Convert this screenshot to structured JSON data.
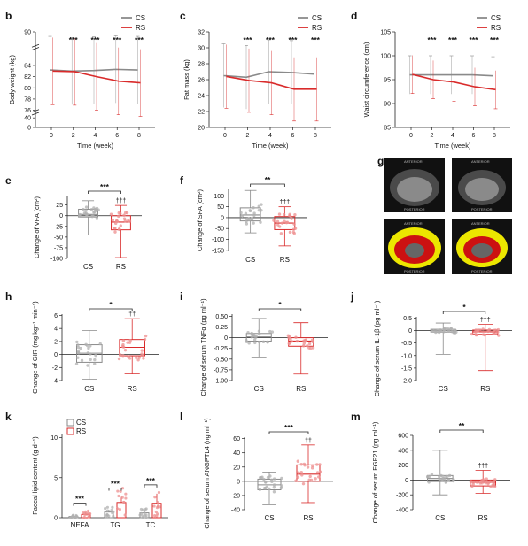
{
  "colors": {
    "cs": "#8a8a8a",
    "rs": "#d92b2b",
    "cs_point": "#b0b0b0",
    "rs_point": "#ee8f8f",
    "axis": "#222222",
    "ct_fat": "#ece600",
    "ct_visceral": "#cc1111"
  },
  "chart_data": [
    {
      "id": "b",
      "panel_label": "b",
      "type": "line",
      "xlabel": "Time (week)",
      "ylabel": "Body weight (kg)",
      "x": [
        0,
        2,
        4,
        6,
        8
      ],
      "xticks": [
        "0",
        "2",
        "4",
        "6",
        "8"
      ],
      "yticks_top": [
        "90",
        "84",
        "82",
        "80",
        "78",
        "76"
      ],
      "yticks_bottom": [
        "40",
        "0"
      ],
      "ylim": [
        76,
        90
      ],
      "axis_break": true,
      "series": [
        {
          "name": "CS",
          "values": [
            83.2,
            83,
            83.1,
            83.3,
            83.2
          ],
          "err": [
            6,
            6,
            6,
            6,
            6
          ]
        },
        {
          "name": "RS",
          "values": [
            83,
            82.9,
            82,
            81.2,
            80.9
          ],
          "err": [
            6,
            6,
            6,
            6,
            6
          ]
        }
      ],
      "sig": [
        "",
        "***",
        "***",
        "***",
        "***"
      ],
      "legend": "top-right"
    },
    {
      "id": "c",
      "panel_label": "c",
      "type": "line",
      "xlabel": "Time (week)",
      "ylabel": "Fat mass (kg)",
      "x": [
        0,
        2,
        4,
        6,
        8
      ],
      "xticks": [
        "0",
        "2",
        "4",
        "6",
        "8"
      ],
      "yticks": [
        "20",
        "22",
        "24",
        "26",
        "28",
        "30",
        "32"
      ],
      "ylim": [
        20,
        32
      ],
      "series": [
        {
          "name": "CS",
          "values": [
            26.5,
            26.3,
            27,
            26.9,
            26.7
          ],
          "err": [
            4,
            4,
            4,
            4,
            4
          ]
        },
        {
          "name": "RS",
          "values": [
            26.4,
            25.9,
            25.6,
            24.8,
            24.8
          ],
          "err": [
            4,
            4,
            4,
            4,
            4
          ]
        }
      ],
      "sig": [
        "",
        "***",
        "***",
        "***",
        "***"
      ],
      "legend": "top-right"
    },
    {
      "id": "d",
      "panel_label": "d",
      "type": "line",
      "xlabel": "Time (week)",
      "ylabel": "Waist circumference (cm)",
      "x": [
        0,
        2,
        4,
        6,
        8
      ],
      "xticks": [
        "0",
        "2",
        "4",
        "6",
        "8"
      ],
      "yticks": [
        "85",
        "90",
        "95",
        "100",
        "105"
      ],
      "ylim": [
        85,
        105
      ],
      "series": [
        {
          "name": "CS",
          "values": [
            96,
            96,
            96,
            96,
            95.8
          ],
          "err": [
            4,
            4,
            4,
            4,
            4
          ]
        },
        {
          "name": "RS",
          "values": [
            96.1,
            95,
            94.5,
            93.5,
            92.9
          ],
          "err": [
            4,
            4,
            4,
            4,
            4
          ]
        }
      ],
      "sig": [
        "",
        "***",
        "***",
        "***",
        "***"
      ],
      "legend": "top-right"
    },
    {
      "id": "e",
      "panel_label": "e",
      "type": "box",
      "ylabel": "Change of VFA (cm²)",
      "categories": [
        "CS",
        "RS"
      ],
      "yticks": [
        "25",
        "0",
        "-25",
        "-50",
        "-75",
        "-100"
      ],
      "ylim": [
        -100,
        45
      ],
      "boxes": [
        {
          "name": "CS",
          "min": -45,
          "q1": -3,
          "median": 3,
          "q3": 15,
          "max": 35
        },
        {
          "name": "RS",
          "min": -98,
          "q1": -33,
          "median": -15,
          "q3": 0,
          "max": 24
        }
      ],
      "sig": "***",
      "daggers": [
        "",
        "†††"
      ]
    },
    {
      "id": "f",
      "panel_label": "f",
      "type": "box",
      "ylabel": "Change of SFA (cm²)",
      "categories": [
        "CS",
        "RS"
      ],
      "yticks": [
        "100",
        "50",
        "0",
        "-50",
        "-100",
        "-150"
      ],
      "ylim": [
        -155,
        130
      ],
      "boxes": [
        {
          "name": "CS",
          "min": -70,
          "q1": -15,
          "median": 12,
          "q3": 45,
          "max": 125
        },
        {
          "name": "RS",
          "min": -130,
          "q1": -55,
          "median": -25,
          "q3": 5,
          "max": 50
        }
      ],
      "sig": "**",
      "daggers": [
        "",
        "†††"
      ]
    },
    {
      "id": "h",
      "panel_label": "h",
      "type": "box",
      "ylabel": "Change of GIR (mg kg⁻¹ min⁻¹)",
      "categories": [
        "CS",
        "RS"
      ],
      "yticks": [
        "6",
        "4",
        "2",
        "0",
        "-2",
        "-4"
      ],
      "ylim": [
        -4,
        6.2
      ],
      "boxes": [
        {
          "name": "CS",
          "min": -3.8,
          "q1": -1.2,
          "median": 0.2,
          "q3": 1.5,
          "max": 3.7
        },
        {
          "name": "RS",
          "min": -3,
          "q1": -0.2,
          "median": 1.1,
          "q3": 2.3,
          "max": 5.5
        }
      ],
      "sig": "*",
      "daggers": [
        "",
        "††"
      ]
    },
    {
      "id": "i",
      "panel_label": "i",
      "type": "box",
      "ylabel": "Change of serum TNFα (pg ml⁻¹)",
      "categories": [
        "CS",
        "RS"
      ],
      "yticks": [
        "0.50",
        "0.25",
        "0",
        "-0.25",
        "-0.50",
        "-0.75",
        "-1.00"
      ],
      "ylim": [
        -1,
        0.55
      ],
      "boxes": [
        {
          "name": "CS",
          "min": -0.45,
          "q1": -0.08,
          "median": 0.02,
          "q3": 0.1,
          "max": 0.45
        },
        {
          "name": "RS",
          "min": -0.85,
          "q1": -0.2,
          "median": -0.08,
          "q3": 0.0,
          "max": 0.35
        }
      ],
      "sig": "*",
      "daggers": [
        "",
        ""
      ]
    },
    {
      "id": "j",
      "panel_label": "j",
      "type": "box",
      "ylabel": "Change of serum IL-1β (pg ml⁻¹)",
      "categories": [
        "CS",
        "RS"
      ],
      "yticks": [
        "0.5",
        "0",
        "-0.5",
        "-1.0",
        "-1.5",
        "-2.0"
      ],
      "ylim": [
        -2,
        0.55
      ],
      "boxes": [
        {
          "name": "CS",
          "min": -0.95,
          "q1": -0.06,
          "median": 0,
          "q3": 0.05,
          "max": 0.3
        },
        {
          "name": "RS",
          "min": -1.6,
          "q1": -0.15,
          "median": -0.05,
          "q3": 0.02,
          "max": 0.25
        }
      ],
      "sig": "*",
      "daggers": [
        "",
        "†††"
      ]
    },
    {
      "id": "k",
      "panel_label": "k",
      "type": "bar",
      "ylabel": "Faecal lipid content (g d⁻¹)",
      "categories": [
        "NEFA",
        "TG",
        "TC"
      ],
      "yticks": [
        "10",
        "5",
        "0"
      ],
      "ylim": [
        0,
        10.5
      ],
      "series": [
        {
          "name": "CS",
          "values": [
            0.15,
            0.7,
            0.6
          ],
          "err": [
            0.1,
            0.3,
            0.4
          ]
        },
        {
          "name": "RS",
          "values": [
            0.4,
            1.9,
            1.8
          ],
          "err": [
            0.3,
            0.7,
            1.2
          ]
        }
      ],
      "sig": [
        "***",
        "***",
        "***"
      ],
      "legend": "top-left"
    },
    {
      "id": "l",
      "panel_label": "l",
      "type": "box",
      "ylabel": "Change of serum ANGPTL4 (ng ml⁻¹)",
      "categories": [
        "CS",
        "RS"
      ],
      "yticks": [
        "60",
        "40",
        "20",
        "0",
        "-20",
        "-40"
      ],
      "ylim": [
        -40,
        62
      ],
      "boxes": [
        {
          "name": "CS",
          "min": -33,
          "q1": -12,
          "median": -5,
          "q3": 3,
          "max": 13
        },
        {
          "name": "RS",
          "min": -30,
          "q1": 0,
          "median": 10,
          "q3": 23,
          "max": 51
        }
      ],
      "sig": "***",
      "daggers": [
        "",
        "††"
      ]
    },
    {
      "id": "m",
      "panel_label": "m",
      "type": "box",
      "ylabel": "Change of serum FGF21 (pg ml⁻¹)",
      "categories": [
        "CS",
        "RS"
      ],
      "yticks": [
        "600",
        "400",
        "200",
        "0",
        "-200",
        "-400"
      ],
      "ylim": [
        -400,
        600
      ],
      "boxes": [
        {
          "name": "CS",
          "min": -200,
          "q1": -20,
          "median": 20,
          "q3": 60,
          "max": 400
        },
        {
          "name": "RS",
          "min": -180,
          "q1": -80,
          "median": -30,
          "q3": 0,
          "max": 130
        }
      ],
      "sig": "**",
      "daggers": [
        "",
        "†††"
      ]
    }
  ],
  "ct_panel": {
    "panel_label": "g",
    "image_labels": [
      "ANTERIOR",
      "ANTERIOR",
      "POSTERIOR",
      "POSTERIOR",
      "ANTERIOR",
      "ANTERIOR",
      "POSTERIOR",
      "POSTERIOR"
    ]
  }
}
